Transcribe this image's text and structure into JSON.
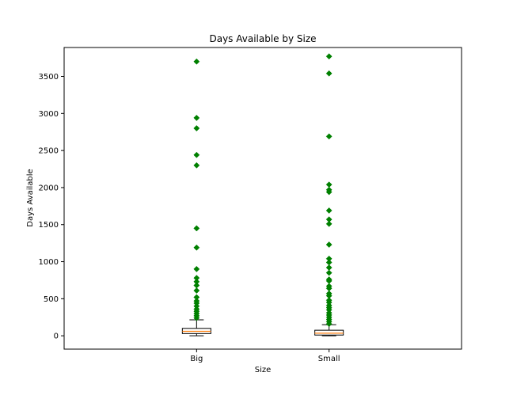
{
  "chart_data": {
    "type": "boxplot",
    "title": "Days Available by Size",
    "xlabel": "Size",
    "ylabel": "Days Available",
    "ylim": [
      -180,
      3890
    ],
    "yticks": [
      0,
      500,
      1000,
      1500,
      2000,
      2500,
      3000,
      3500
    ],
    "categories": [
      "Big",
      "Small"
    ],
    "flier_color": "#008000",
    "median_color": "#ff7f0e",
    "boxes": [
      {
        "name": "Big",
        "whisker_low": 0,
        "q1": 30,
        "median": 60,
        "q3": 100,
        "whisker_high": 215,
        "fliers": [
          3700,
          2940,
          2800,
          2440,
          2300,
          1450,
          1190,
          900,
          780,
          730,
          680,
          610,
          520,
          470,
          440,
          400,
          360,
          330,
          300,
          270,
          240
        ]
      },
      {
        "name": "Small",
        "whisker_low": 0,
        "q1": 10,
        "median": 35,
        "q3": 75,
        "whisker_high": 150,
        "fliers": [
          3770,
          3540,
          2690,
          2040,
          1970,
          1940,
          1690,
          1570,
          1510,
          1230,
          1040,
          990,
          920,
          850,
          760,
          740,
          670,
          640,
          570,
          540,
          480,
          450,
          410,
          380,
          350,
          310,
          280,
          250,
          220,
          190,
          160
        ]
      }
    ]
  }
}
